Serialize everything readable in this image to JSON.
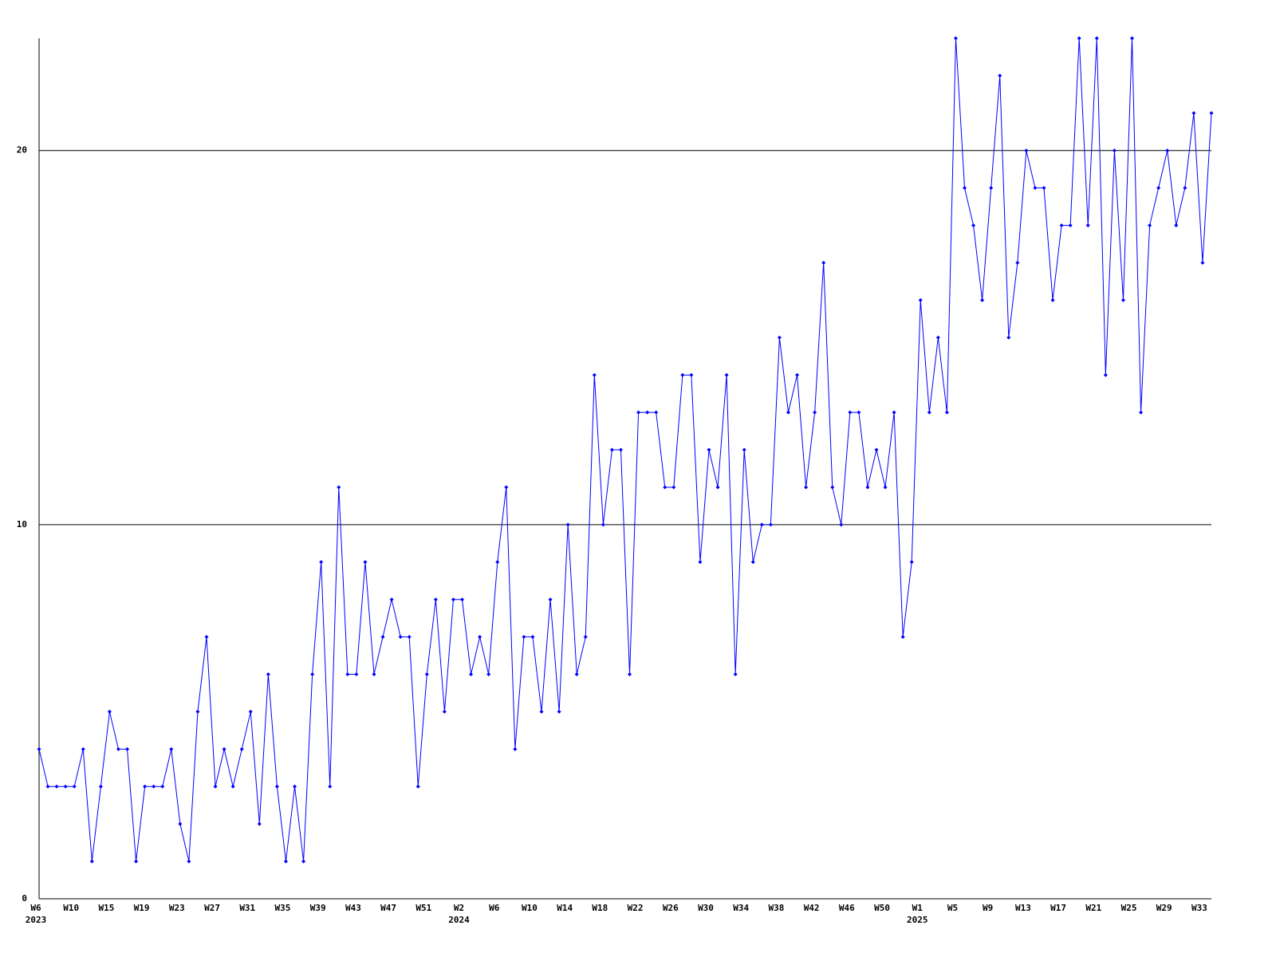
{
  "chart_data": {
    "type": "line",
    "categories": [
      "W6",
      null,
      null,
      null,
      "W10",
      null,
      null,
      null,
      "W15",
      null,
      null,
      null,
      "W19",
      null,
      null,
      null,
      "W23",
      null,
      null,
      null,
      "W27",
      null,
      null,
      null,
      "W31",
      null,
      null,
      null,
      "W35",
      null,
      null,
      null,
      "W39",
      null,
      null,
      null,
      "W43",
      null,
      null,
      null,
      "W47",
      null,
      null,
      null,
      "W51",
      null,
      null,
      null,
      "W2",
      null,
      null,
      null,
      "W6",
      null,
      null,
      null,
      "W10",
      null,
      null,
      null,
      "W14",
      null,
      null,
      null,
      "W18",
      null,
      null,
      null,
      "W22",
      null,
      null,
      null,
      "W26",
      null,
      null,
      null,
      "W30",
      null,
      null,
      null,
      "W34",
      null,
      null,
      null,
      "W38",
      null,
      null,
      null,
      "W42",
      null,
      null,
      null,
      "W46",
      null,
      null,
      null,
      "W50",
      null,
      null,
      null,
      "W1",
      null,
      null,
      null,
      "W5",
      null,
      null,
      null,
      "W9",
      null,
      null,
      null,
      "W13",
      null,
      null,
      null,
      "W17",
      null,
      null,
      null,
      "W21",
      null,
      null,
      null,
      "W25",
      null,
      null,
      null,
      "W29",
      null,
      null,
      null,
      "W33",
      null
    ],
    "category_years": [
      "2023",
      null,
      null,
      null,
      null,
      null,
      null,
      null,
      null,
      null,
      null,
      null,
      null,
      null,
      null,
      null,
      null,
      null,
      null,
      null,
      null,
      null,
      null,
      null,
      null,
      null,
      null,
      null,
      null,
      null,
      null,
      null,
      null,
      null,
      null,
      null,
      null,
      null,
      null,
      null,
      null,
      null,
      null,
      null,
      null,
      null,
      null,
      null,
      "2024",
      null,
      null,
      null,
      null,
      null,
      null,
      null,
      null,
      null,
      null,
      null,
      null,
      null,
      null,
      null,
      null,
      null,
      null,
      null,
      null,
      null,
      null,
      null,
      null,
      null,
      null,
      null,
      null,
      null,
      null,
      null,
      null,
      null,
      null,
      null,
      null,
      null,
      null,
      null,
      null,
      null,
      null,
      null,
      null,
      null,
      null,
      null,
      null,
      null,
      null,
      null,
      "2025",
      null,
      null,
      null,
      null,
      null,
      null,
      null,
      null,
      null,
      null,
      null,
      null,
      null,
      null,
      null,
      null,
      null,
      null,
      null,
      null,
      null,
      null,
      null,
      null,
      null,
      null,
      null,
      null,
      null,
      null,
      null,
      null,
      null
    ],
    "series": [
      {
        "color": "#0000ff",
        "values": [
          4,
          3,
          3,
          3,
          3,
          4,
          1,
          3,
          5,
          4,
          4,
          1,
          3,
          3,
          3,
          4,
          2,
          1,
          5,
          7,
          3,
          4,
          3,
          4,
          5,
          2,
          6,
          3,
          1,
          3,
          1,
          6,
          9,
          3,
          11,
          6,
          6,
          9,
          6,
          7,
          8,
          7,
          7,
          3,
          6,
          8,
          5,
          8,
          8,
          6,
          7,
          6,
          9,
          11,
          4,
          7,
          7,
          5,
          8,
          5,
          10,
          6,
          7,
          14,
          10,
          12,
          12,
          6,
          13,
          13,
          13,
          11,
          11,
          14,
          14,
          9,
          12,
          11,
          14,
          6,
          12,
          9,
          10,
          10,
          15,
          13,
          14,
          11,
          13,
          17,
          11,
          10,
          13,
          13,
          11,
          12,
          11,
          13,
          7,
          9,
          16,
          13,
          15,
          13,
          23,
          19,
          18,
          16,
          19,
          22,
          15,
          17,
          20,
          19,
          19,
          16,
          18,
          18,
          23,
          18,
          23,
          14,
          20,
          16,
          23,
          13,
          18,
          19,
          20,
          18,
          19,
          21,
          17,
          21
        ]
      }
    ],
    "ylim": [
      0,
      23
    ],
    "yticks": [
      0,
      10,
      20
    ],
    "grid": true
  }
}
